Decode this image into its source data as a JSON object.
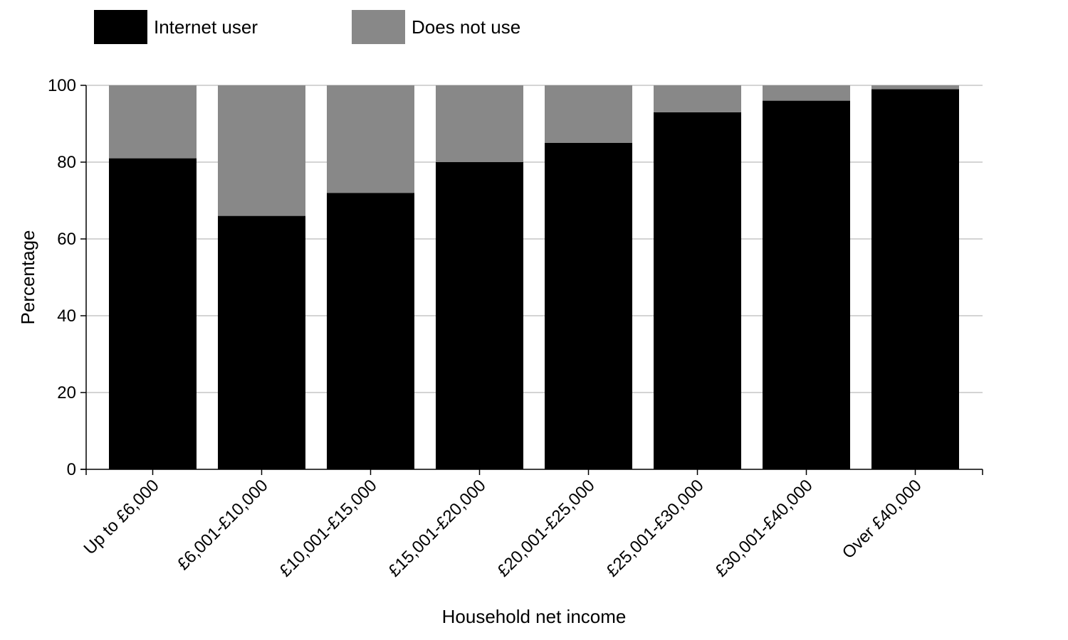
{
  "chart_data": {
    "type": "bar",
    "stacked": true,
    "categories": [
      "Up to £6,000",
      "£6,001-£10,000",
      "£10,001-£15,000",
      "£15,001-£20,000",
      "£20,001-£25,000",
      "£25,001-£30,000",
      "£30,001-£40,000",
      "Over £40,000"
    ],
    "series": [
      {
        "name": "Internet user",
        "color": "#000000",
        "values": [
          81,
          66,
          72,
          80,
          85,
          93,
          96,
          99
        ]
      },
      {
        "name": "Does not use",
        "color": "#888888",
        "values": [
          19,
          34,
          28,
          20,
          15,
          7,
          4,
          1
        ]
      }
    ],
    "title": "",
    "xlabel": "Household net income",
    "ylabel": "Percentage",
    "ylim": [
      0,
      100
    ],
    "yticks": [
      0,
      20,
      40,
      60,
      80,
      100
    ],
    "grid": true,
    "legend_position": "top-left"
  }
}
